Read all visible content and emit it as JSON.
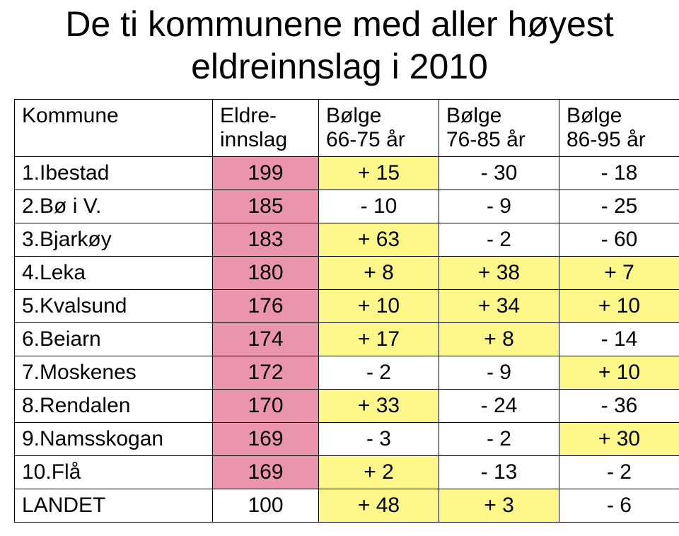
{
  "title_line1": "De ti kommunene med aller høyest",
  "title_line2": "eldreinnslag i 2010",
  "header": {
    "kommune": "Kommune",
    "eldre_l1": "Eldre-",
    "eldre_l2": "innslag",
    "bolge1_l1": "Bølge",
    "bolge1_l2": "66-75 år",
    "bolge2_l1": "Bølge",
    "bolge2_l2": "76-85 år",
    "bolge3_l1": "Bølge",
    "bolge3_l2": "86-95 år"
  },
  "colors": {
    "pink": "#eb94ad",
    "yellow": "#fef88a",
    "none": "#ffffff"
  },
  "rows": [
    {
      "name": "1.Ibestad",
      "eldre": "199",
      "b1": "+ 15",
      "b2": "- 30",
      "b3": "- 18",
      "c_eldre": "pink",
      "c_b1": "yellow",
      "c_b2": "none",
      "c_b3": "none"
    },
    {
      "name": "2.Bø i V.",
      "eldre": "185",
      "b1": "- 10",
      "b2": "- 9",
      "b3": "- 25",
      "c_eldre": "pink",
      "c_b1": "none",
      "c_b2": "none",
      "c_b3": "none"
    },
    {
      "name": "3.Bjarkøy",
      "eldre": "183",
      "b1": "+ 63",
      "b2": "- 2",
      "b3": "- 60",
      "c_eldre": "pink",
      "c_b1": "yellow",
      "c_b2": "none",
      "c_b3": "none"
    },
    {
      "name": "4.Leka",
      "eldre": "180",
      "b1": "+ 8",
      "b2": "+ 38",
      "b3": "+ 7",
      "c_eldre": "pink",
      "c_b1": "yellow",
      "c_b2": "yellow",
      "c_b3": "yellow"
    },
    {
      "name": "5.Kvalsund",
      "eldre": "176",
      "b1": "+ 10",
      "b2": "+ 34",
      "b3": "+ 10",
      "c_eldre": "pink",
      "c_b1": "yellow",
      "c_b2": "yellow",
      "c_b3": "yellow"
    },
    {
      "name": "6.Beiarn",
      "eldre": "174",
      "b1": "+ 17",
      "b2": "+ 8",
      "b3": "- 14",
      "c_eldre": "pink",
      "c_b1": "yellow",
      "c_b2": "yellow",
      "c_b3": "none"
    },
    {
      "name": "7.Moskenes",
      "eldre": "172",
      "b1": "- 2",
      "b2": "- 9",
      "b3": "+ 10",
      "c_eldre": "pink",
      "c_b1": "none",
      "c_b2": "none",
      "c_b3": "yellow"
    },
    {
      "name": "8.Rendalen",
      "eldre": "170",
      "b1": "+ 33",
      "b2": "- 24",
      "b3": "- 36",
      "c_eldre": "pink",
      "c_b1": "yellow",
      "c_b2": "none",
      "c_b3": "none"
    },
    {
      "name": "9.Namsskogan",
      "eldre": "169",
      "b1": "- 3",
      "b2": "- 2",
      "b3": "+ 30",
      "c_eldre": "pink",
      "c_b1": "none",
      "c_b2": "none",
      "c_b3": "yellow"
    },
    {
      "name": "10.Flå",
      "eldre": "169",
      "b1": "+ 2",
      "b2": "- 13",
      "b3": "- 2",
      "c_eldre": "pink",
      "c_b1": "yellow",
      "c_b2": "none",
      "c_b3": "none"
    },
    {
      "name": "LANDET",
      "eldre": "100",
      "b1": "+ 48",
      "b2": "+ 3",
      "b3": "- 6",
      "c_eldre": "none",
      "c_b1": "yellow",
      "c_b2": "yellow",
      "c_b3": "none"
    }
  ]
}
